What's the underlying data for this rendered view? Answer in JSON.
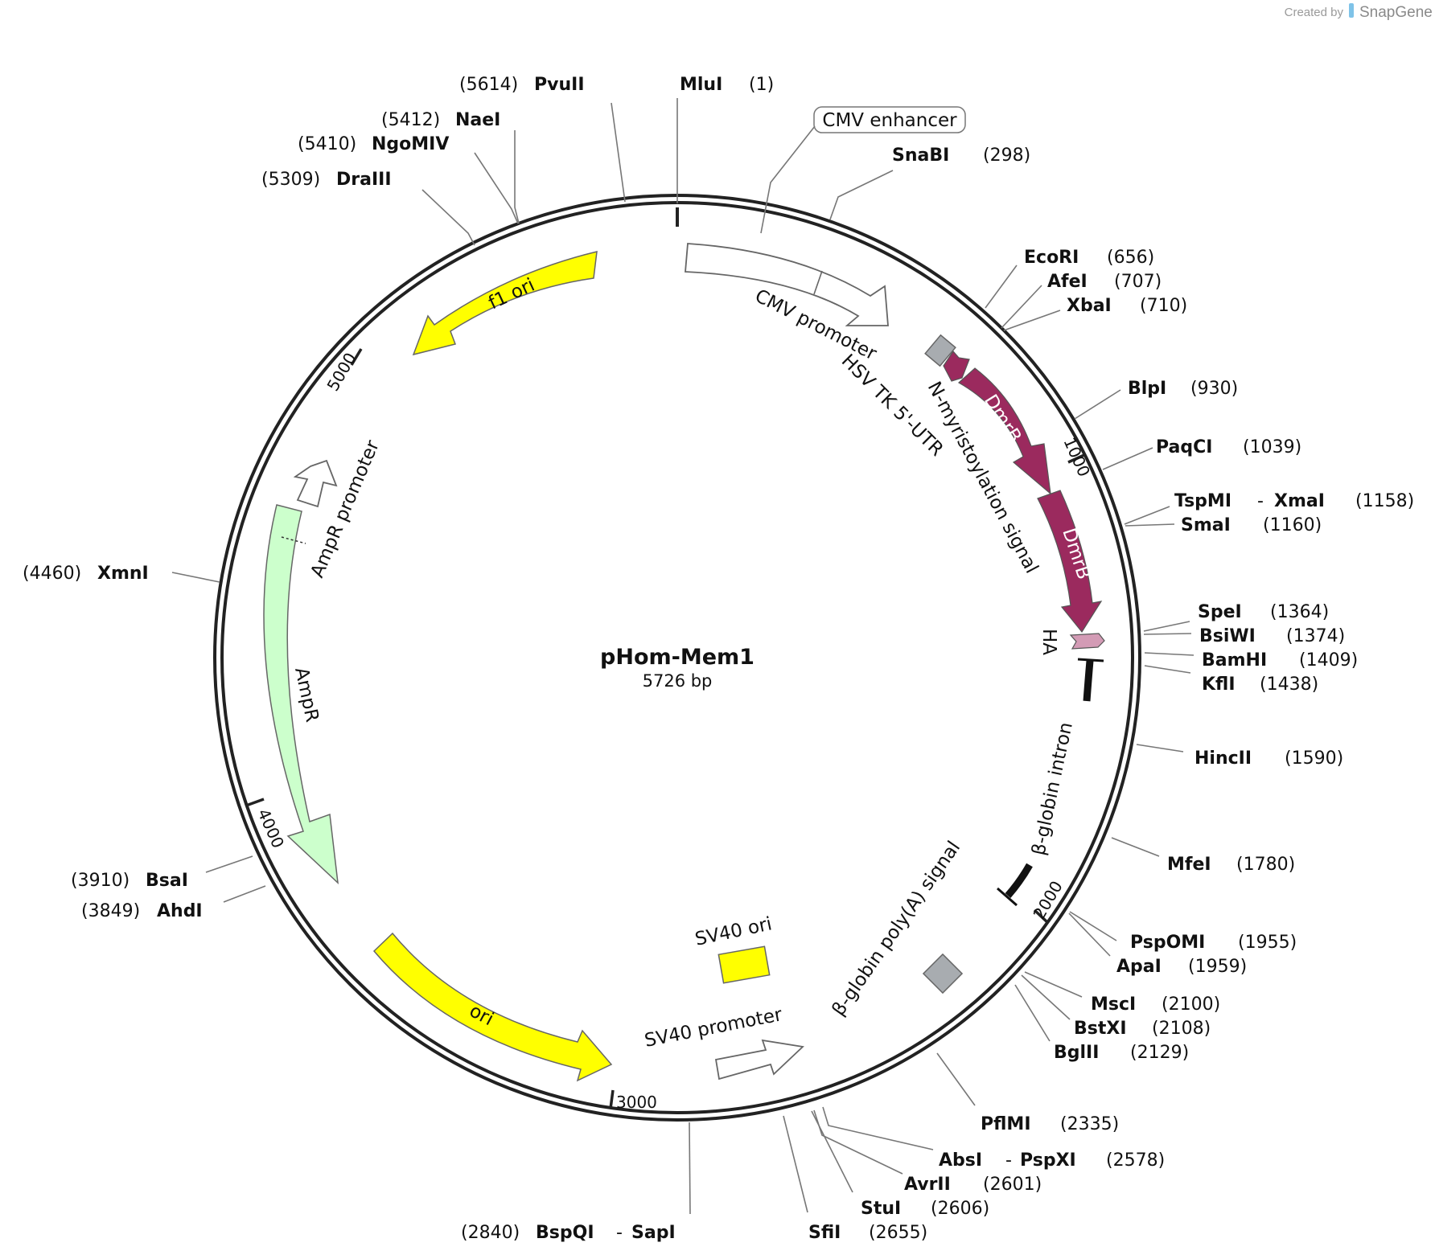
{
  "credit": {
    "prefix": "Created by",
    "brand": "SnapGene"
  },
  "plasmid": {
    "name": "pHom-Mem1",
    "size_label": "5726 bp"
  },
  "ticks": [
    "1000",
    "2000",
    "3000",
    "4000",
    "5000"
  ],
  "enzymes": [
    {
      "name": "MluI",
      "pos": "(1)"
    },
    {
      "name": "SnaBI",
      "pos": "(298)"
    },
    {
      "name": "EcoRI",
      "pos": "(656)"
    },
    {
      "name": "AfeI",
      "pos": "(707)"
    },
    {
      "name": "XbaI",
      "pos": "(710)"
    },
    {
      "name": "BlpI",
      "pos": "(930)"
    },
    {
      "name": "PaqCI",
      "pos": "(1039)"
    },
    {
      "name": "TspMI",
      "name2": "XmaI",
      "pos": "(1158)"
    },
    {
      "name": "SmaI",
      "pos": "(1160)"
    },
    {
      "name": "SpeI",
      "pos": "(1364)"
    },
    {
      "name": "BsiWI",
      "pos": "(1374)"
    },
    {
      "name": "BamHI",
      "pos": "(1409)"
    },
    {
      "name": "KflI",
      "pos": "(1438)"
    },
    {
      "name": "HincII",
      "pos": "(1590)"
    },
    {
      "name": "MfeI",
      "pos": "(1780)"
    },
    {
      "name": "PspOMI",
      "pos": "(1955)"
    },
    {
      "name": "ApaI",
      "pos": "(1959)"
    },
    {
      "name": "MscI",
      "pos": "(2100)"
    },
    {
      "name": "BstXI",
      "pos": "(2108)"
    },
    {
      "name": "BglII",
      "pos": "(2129)"
    },
    {
      "name": "PflMI",
      "pos": "(2335)"
    },
    {
      "name": "AbsI",
      "name2": "PspXI",
      "pos": "(2578)"
    },
    {
      "name": "AvrII",
      "pos": "(2601)"
    },
    {
      "name": "StuI",
      "pos": "(2606)"
    },
    {
      "name": "SfiI",
      "pos": "(2655)"
    },
    {
      "name": "BspQI",
      "name2": "SapI",
      "pos": "(2840)"
    },
    {
      "name": "AhdI",
      "pos": "(3849)"
    },
    {
      "name": "BsaI",
      "pos": "(3910)"
    },
    {
      "name": "XmnI",
      "pos": "(4460)"
    },
    {
      "name": "DraIII",
      "pos": "(5309)"
    },
    {
      "name": "NgoMIV",
      "pos": "(5410)"
    },
    {
      "name": "NaeI",
      "pos": "(5412)"
    },
    {
      "name": "PvuII",
      "pos": "(5614)"
    }
  ],
  "features": {
    "cmv_enhancer": "CMV enhancer",
    "cmv_promoter": "CMV promoter",
    "hsv_utr": "HSV TK 5'-UTR",
    "nmyr": "N-myristoylation signal",
    "dmrb1": "DmrB",
    "dmrb2": "DmrB",
    "ha": "HA",
    "bglobin_intron": "β-globin intron",
    "bglobin_polya": "β-globin poly(A) signal",
    "sv40_ori": "SV40 ori",
    "sv40_promoter": "SV40 promoter",
    "ori": "ori",
    "ampr": "AmpR",
    "ampr_promoter": "AmpR promoter",
    "f1_ori": "f1 ori"
  },
  "colors": {
    "dmrb": "#9b2a5e",
    "ha": "#d39bb5",
    "yellow": "#ffff00",
    "ampr": "#ccffcc",
    "gray": "#a8acb0",
    "backbone": "#222222"
  }
}
